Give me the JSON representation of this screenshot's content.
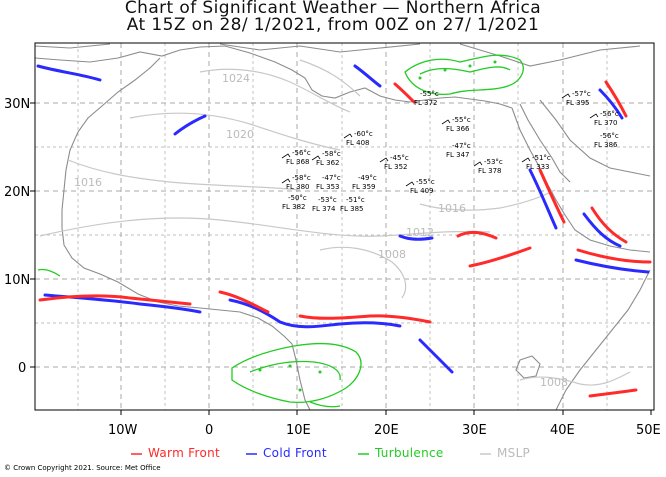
{
  "title": {
    "line1": "Chart of Significant Weather — Northern Africa",
    "line2": "At 15Z on 28/ 1/2021, from 00Z on 27/ 1/2021"
  },
  "axes": {
    "lon_ticks": [
      "10W",
      "0",
      "10E",
      "20E",
      "30E",
      "40E",
      "50E"
    ],
    "lat_ticks": [
      "30N",
      "20N",
      "10N",
      "0"
    ]
  },
  "isobars": [
    "1024",
    "1020",
    "1016",
    "1016",
    "1012",
    "1008",
    "1008"
  ],
  "jet_labels": [
    {
      "temp": "-56°c",
      "fl": "FL 368"
    },
    {
      "temp": "-58°c",
      "fl": "FL 380"
    },
    {
      "temp": "-50°c",
      "fl": "FL 382"
    },
    {
      "temp": "-58°c",
      "fl": "FL 362"
    },
    {
      "temp": "-53°c",
      "fl": "FL 374"
    },
    {
      "temp": "-60°c",
      "fl": "FL 408"
    },
    {
      "temp": "-47°c",
      "fl": "FL 353"
    },
    {
      "temp": "-51°c",
      "fl": "FL 385"
    },
    {
      "temp": "-55°c",
      "fl": "FL 372"
    },
    {
      "temp": "-49°c",
      "fl": "FL 359"
    },
    {
      "temp": "-45°c",
      "fl": "FL 352"
    },
    {
      "temp": "-55°c",
      "fl": "FL 366"
    },
    {
      "temp": "-47°c",
      "fl": "FL 347"
    },
    {
      "temp": "-53°c",
      "fl": "FL 378"
    },
    {
      "temp": "-57°c",
      "fl": "FL 395"
    },
    {
      "temp": "-56°c",
      "fl": "FL 386"
    },
    {
      "temp": "-56°c",
      "fl": "FL 370"
    },
    {
      "temp": "-51°c",
      "fl": "FL 333"
    },
    {
      "temp": "-55°c",
      "fl": "FL 409"
    }
  ],
  "legend": {
    "warm": "Warm Front",
    "cold": "Cold Front",
    "turb": "Turbulence",
    "mslp": "MSLP"
  },
  "colors": {
    "warm": "#ff2a2a",
    "cold": "#2a2aff",
    "turb": "#22cc22",
    "mslp": "#c8c8c8",
    "coast": "#8c8c8c",
    "grid": "#aaaaaa"
  },
  "copyright": "© Crown Copyright 2021. Source: Met Office"
}
